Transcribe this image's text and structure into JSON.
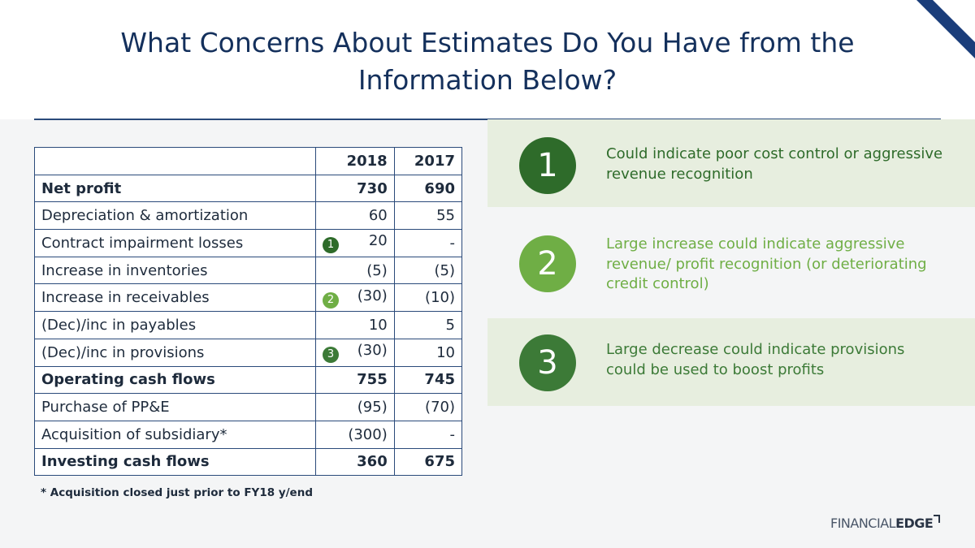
{
  "title": "What Concerns About Estimates Do You Have from the Information Below?",
  "colors": {
    "dark_green": "#2e6b2a",
    "light_green": "#6fae45",
    "mid_green": "#3c7a37",
    "navy": "#14305c"
  },
  "table": {
    "headers": [
      "",
      "2018",
      "2017"
    ],
    "rows": [
      {
        "label": "Net profit",
        "y2018": "730",
        "y2017": "690",
        "bold": true,
        "marker": ""
      },
      {
        "label": "Depreciation & amortization",
        "y2018": "60",
        "y2017": "55",
        "bold": false,
        "marker": ""
      },
      {
        "label": "Contract impairment losses",
        "y2018": "20",
        "y2017": "-",
        "bold": false,
        "marker": "1"
      },
      {
        "label": "Increase in inventories",
        "y2018": "(5)",
        "y2017": "(5)",
        "bold": false,
        "marker": ""
      },
      {
        "label": "Increase in receivables",
        "y2018": "(30)",
        "y2017": "(10)",
        "bold": false,
        "marker": "2"
      },
      {
        "label": "(Dec)/inc in payables",
        "y2018": "10",
        "y2017": "5",
        "bold": false,
        "marker": ""
      },
      {
        "label": "(Dec)/inc in provisions",
        "y2018": "(30)",
        "y2017": "10",
        "bold": false,
        "marker": "3"
      },
      {
        "label": "Operating cash flows",
        "y2018": "755",
        "y2017": "745",
        "bold": true,
        "marker": ""
      },
      {
        "label": "Purchase of PP&E",
        "y2018": "(95)",
        "y2017": "(70)",
        "bold": false,
        "marker": ""
      },
      {
        "label": "Acquisition of subsidiary*",
        "y2018": "(300)",
        "y2017": "-",
        "bold": false,
        "marker": ""
      },
      {
        "label": "Investing cash flows",
        "y2018": "360",
        "y2017": "675",
        "bold": true,
        "marker": ""
      }
    ],
    "footnote": "* Acquisition closed just prior to FY18 y/end"
  },
  "concerns": [
    {
      "number": "1",
      "text": "Could indicate poor cost control or aggressive revenue recognition"
    },
    {
      "number": "2",
      "text": "Large increase could indicate aggressive revenue/ profit recognition (or deteriorating credit control)"
    },
    {
      "number": "3",
      "text": "Large decrease could indicate provisions could be used to boost profits"
    }
  ],
  "logo": {
    "part1": "FINANCIAL",
    "part2": "EDGE"
  }
}
